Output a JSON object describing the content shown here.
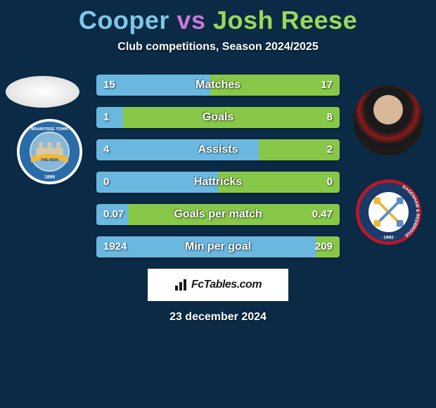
{
  "title": {
    "player1": "Cooper",
    "vs": "vs",
    "player2": "Josh Reese",
    "player1_color": "#7ec8e8",
    "vs_color": "#c878d8",
    "player2_color": "#9ad858"
  },
  "subtitle": "Club competitions, Season 2024/2025",
  "background_color": "#0a2a45",
  "crests": {
    "left": {
      "outer_ring": "#ffffff",
      "mid_ring": "#2a6ca8",
      "inner": "#c8dce8",
      "text_top": "BRAINTREE TOWN",
      "text_bottom": "THE IRON",
      "banner_color": "#f0b838",
      "center_scene": "#88b8d8"
    },
    "right": {
      "outer_ring": "#b81828",
      "mid_ring": "#1a3a6a",
      "inner": "#ffffff",
      "text_chars": "DAGENHAM & REDBRIDGE",
      "year": "1992",
      "swords_color_1": "#e8b838",
      "swords_color_2": "#5a8ac8"
    }
  },
  "bars": {
    "left_color": "#6ab8e0",
    "right_color": "#88c848",
    "label_color": "#ffffff",
    "rows": [
      {
        "label": "Matches",
        "left_val": "15",
        "right_val": "17",
        "left_pct": 46.9,
        "right_pct": 53.1
      },
      {
        "label": "Goals",
        "left_val": "1",
        "right_val": "8",
        "left_pct": 11.1,
        "right_pct": 88.9
      },
      {
        "label": "Assists",
        "left_val": "4",
        "right_val": "2",
        "left_pct": 66.7,
        "right_pct": 33.3
      },
      {
        "label": "Hattricks",
        "left_val": "0",
        "right_val": "0",
        "left_pct": 50.0,
        "right_pct": 50.0
      },
      {
        "label": "Goals per match",
        "left_val": "0.07",
        "right_val": "0.47",
        "left_pct": 13.0,
        "right_pct": 87.0
      },
      {
        "label": "Min per goal",
        "left_val": "1924",
        "right_val": "209",
        "left_pct": 90.2,
        "right_pct": 9.8
      }
    ]
  },
  "watermark": "FcTables.com",
  "date": "23 december 2024"
}
